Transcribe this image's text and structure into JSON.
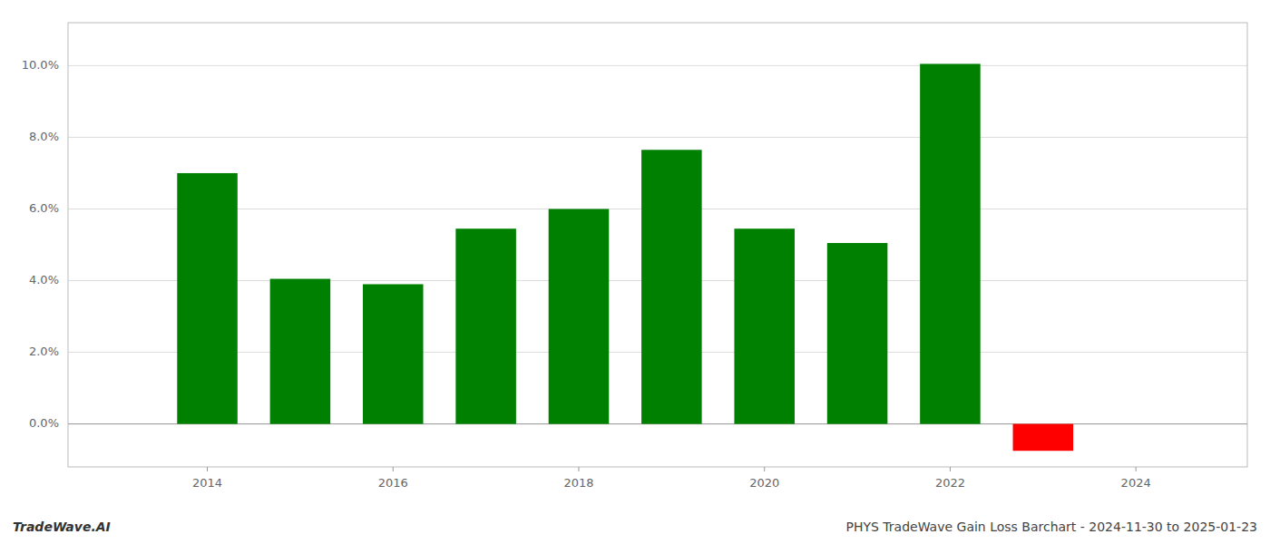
{
  "chart_data": {
    "type": "bar",
    "title": "PHYS TradeWave Gain Loss Barchart - 2024-11-30 to 2025-01-23",
    "annotations": [
      "TradeWave.AI"
    ],
    "x": [
      2014,
      2015,
      2016,
      2017,
      2018,
      2019,
      2020,
      2021,
      2022,
      2023
    ],
    "values": [
      0.07,
      0.0405,
      0.039,
      0.0545,
      0.06,
      0.0765,
      0.0545,
      0.0505,
      0.1005,
      -0.0075
    ],
    "colors": [
      "#008000",
      "#008000",
      "#008000",
      "#008000",
      "#008000",
      "#008000",
      "#008000",
      "#008000",
      "#008000",
      "#ff0000"
    ],
    "xlim": [
      2012.5,
      2025.2
    ],
    "xticks": [
      2014,
      2016,
      2018,
      2020,
      2022,
      2024
    ],
    "ylim": [
      -0.012,
      0.112
    ],
    "yticks": [
      {
        "value": 0.0,
        "label": "0.0%"
      },
      {
        "value": 0.02,
        "label": "2.0%"
      },
      {
        "value": 0.04,
        "label": "4.0%"
      },
      {
        "value": 0.06,
        "label": "6.0%"
      },
      {
        "value": 0.08,
        "label": "8.0%"
      },
      {
        "value": 0.1,
        "label": "10.0%"
      }
    ],
    "grid": true
  }
}
